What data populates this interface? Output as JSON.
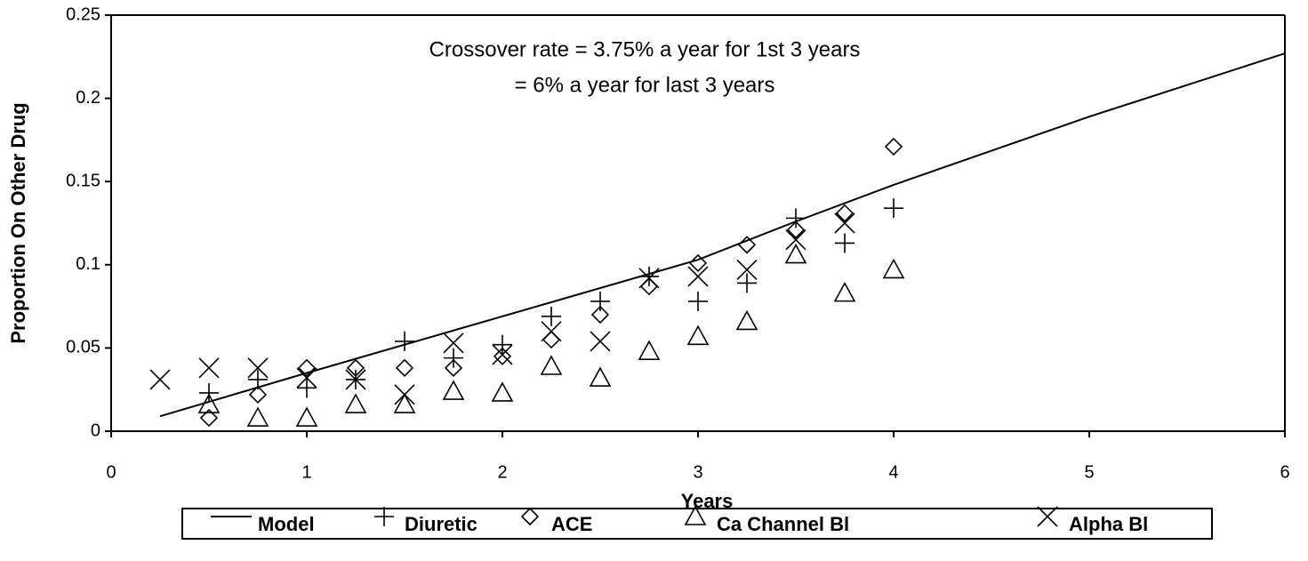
{
  "chart_data": {
    "type": "scatter",
    "annotations": [
      "Crossover rate = 3.75% a year for 1st 3 years",
      "= 6% a year for last 3 years"
    ],
    "x_label": "Years",
    "y_label": "Proportion On Other Drug",
    "xlim": [
      0,
      6
    ],
    "xticks": [
      0,
      1,
      2,
      3,
      4,
      5,
      6
    ],
    "ylim": [
      0,
      0.25
    ],
    "yticks": [
      0,
      0.05,
      0.1,
      0.15,
      0.2,
      0.25
    ],
    "series": [
      {
        "name": "Model",
        "marker": "line",
        "color": "#000000",
        "x": [
          0.25,
          1,
          2,
          3,
          3.5,
          4,
          5,
          6
        ],
        "values": [
          0.009,
          0.035,
          0.069,
          0.103,
          0.126,
          0.148,
          0.189,
          0.227
        ]
      },
      {
        "name": "Diuretic",
        "marker": "plus",
        "color": "#000000",
        "x": [
          0.5,
          0.75,
          1,
          1.25,
          1.5,
          1.75,
          2,
          2.25,
          2.5,
          2.75,
          3,
          3.25,
          3.5,
          3.75,
          4
        ],
        "values": [
          0.023,
          0.031,
          0.026,
          0.031,
          0.054,
          0.044,
          0.052,
          0.069,
          0.078,
          0.093,
          0.078,
          0.089,
          0.128,
          0.113,
          0.134
        ]
      },
      {
        "name": "ACE",
        "marker": "diamond",
        "color": "#000000",
        "x": [
          0.5,
          0.75,
          1,
          1.25,
          1.5,
          1.75,
          2,
          2.25,
          2.5,
          2.75,
          3,
          3.25,
          3.5,
          3.75,
          4
        ],
        "values": [
          0.008,
          0.022,
          0.038,
          0.038,
          0.038,
          0.038,
          0.045,
          0.055,
          0.07,
          0.087,
          0.101,
          0.112,
          0.121,
          0.131,
          0.171
        ]
      },
      {
        "name": "Ca Channel Bl",
        "marker": "triangle",
        "color": "#000000",
        "x": [
          0.5,
          0.75,
          1,
          1.25,
          1.5,
          1.75,
          2,
          2.25,
          2.5,
          2.75,
          3,
          3.25,
          3.5,
          3.75,
          4
        ],
        "values": [
          0.016,
          0.008,
          0.008,
          0.016,
          0.016,
          0.024,
          0.023,
          0.039,
          0.032,
          0.048,
          0.057,
          0.066,
          0.106,
          0.083,
          0.097
        ]
      },
      {
        "name": "Alpha Bl",
        "marker": "x",
        "color": "#000000",
        "x": [
          0.25,
          0.5,
          0.75,
          1,
          1.25,
          1.5,
          1.75,
          2,
          2.25,
          2.5,
          2.75,
          3,
          3.25,
          3.5,
          3.75
        ],
        "values": [
          0.031,
          0.038,
          0.038,
          0.032,
          0.031,
          0.022,
          0.053,
          0.046,
          0.06,
          0.054,
          0.092,
          0.093,
          0.097,
          0.115,
          0.125
        ]
      }
    ]
  }
}
